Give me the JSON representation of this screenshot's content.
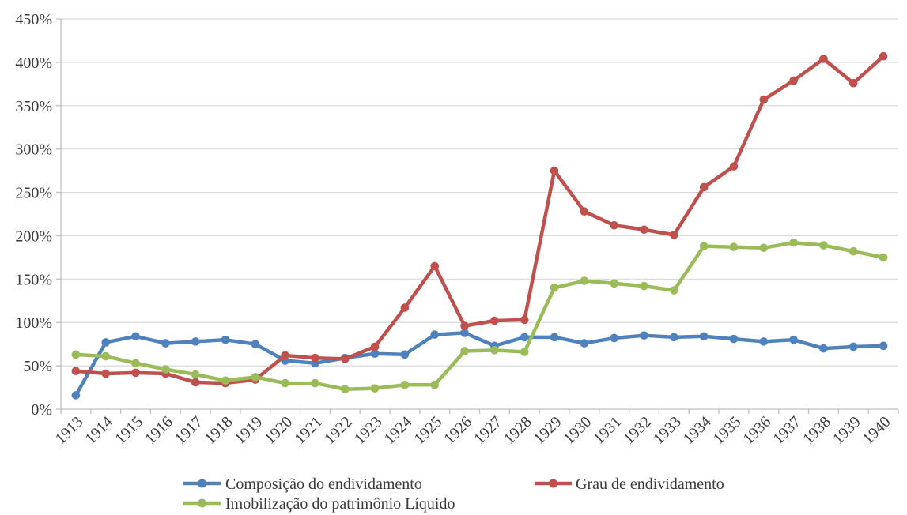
{
  "chart_data": {
    "type": "line",
    "title": "",
    "xlabel": "",
    "ylabel": "",
    "categories": [
      "1913",
      "1914",
      "1915",
      "1916",
      "1917",
      "1918",
      "1919",
      "1920",
      "1921",
      "1922",
      "1923",
      "1924",
      "1925",
      "1926",
      "1927",
      "1928",
      "1929",
      "1930",
      "1931",
      "1932",
      "1933",
      "1934",
      "1935",
      "1936",
      "1937",
      "1938",
      "1939",
      "1940"
    ],
    "y_axis": {
      "min": 0,
      "max": 450,
      "step": 50,
      "unit": "%",
      "tick_labels": [
        "0%",
        "50%",
        "100%",
        "150%",
        "200%",
        "250%",
        "300%",
        "350%",
        "400%",
        "450%"
      ]
    },
    "grid": true,
    "legend_position": "bottom",
    "series": [
      {
        "name": "Composição do endividamento",
        "color": "#4F81BD",
        "values": [
          16,
          77,
          84,
          76,
          78,
          80,
          75,
          56,
          53,
          59,
          64,
          63,
          86,
          88,
          73,
          83,
          83,
          76,
          82,
          85,
          83,
          84,
          81,
          78,
          80,
          70,
          72,
          73
        ]
      },
      {
        "name": "Grau de endividamento",
        "color": "#C0504D",
        "values": [
          44,
          41,
          42,
          41,
          31,
          30,
          34,
          62,
          59,
          58,
          72,
          117,
          165,
          96,
          102,
          103,
          275,
          228,
          212,
          207,
          201,
          256,
          280,
          357,
          379,
          404,
          376,
          407
        ]
      },
      {
        "name": "Imobilização do patrimônio Líquido",
        "color": "#9BBB59",
        "values": [
          63,
          61,
          53,
          46,
          40,
          33,
          37,
          30,
          30,
          23,
          24,
          28,
          28,
          67,
          68,
          66,
          140,
          148,
          145,
          142,
          137,
          188,
          187,
          186,
          192,
          189,
          182,
          175
        ]
      }
    ]
  },
  "colors": {
    "gridline": "#D9D9D9",
    "axis": "#BFBFBF",
    "text": "#3B3B3B",
    "background": "#FFFFFF"
  }
}
